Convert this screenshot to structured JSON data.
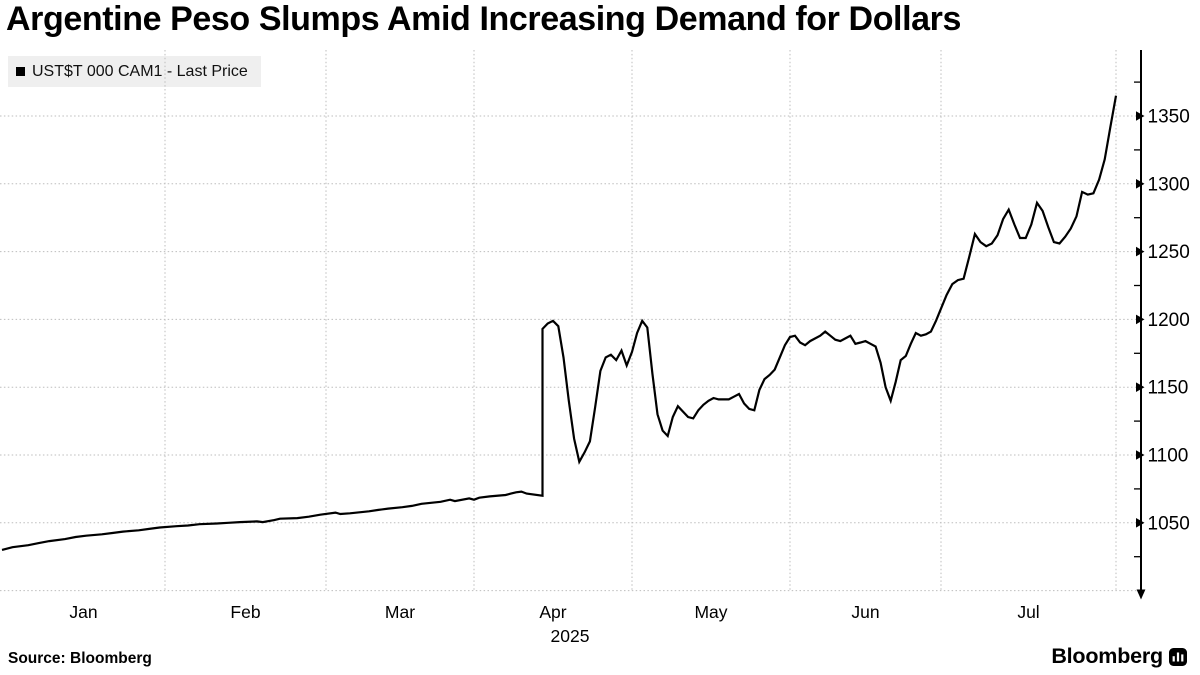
{
  "header": {
    "title": "Argentine Peso Slumps Amid Increasing Demand for Dollars"
  },
  "legend": {
    "swatch_icon": "black-square-icon",
    "swatch_color": "#000000",
    "label": "UST$T 000 CAM1 - Last Price",
    "background": "#efefef"
  },
  "footer": {
    "source": "Source: Bloomberg",
    "logo_text": "Bloomberg",
    "logo_icon": "bar-chart-icon"
  },
  "chart_data": {
    "type": "line",
    "title": "Argentine Peso Slumps Amid Increasing Demand for Dollars",
    "series_name": "UST$T 000 CAM1 - Last Price",
    "line_color": "#000000",
    "grid": "dotted",
    "grid_color": "#bdbdbd",
    "legend_position": "top-left",
    "y_axis": {
      "side": "right",
      "ylim": [
        1000,
        1400
      ],
      "ticks": [
        1050,
        1100,
        1150,
        1200,
        1250,
        1300,
        1350
      ],
      "minor_ticks": [
        1025,
        1075,
        1125,
        1175,
        1225,
        1275,
        1325,
        1375
      ],
      "gridlines": [
        1000,
        1050,
        1100,
        1150,
        1200,
        1250,
        1300,
        1350
      ]
    },
    "x_axis": {
      "range": [
        "2025-01-01",
        "2025-08-01"
      ],
      "months": [
        "Jan",
        "Feb",
        "Mar",
        "Apr",
        "May",
        "Jun",
        "Jul"
      ],
      "year_label": "2025"
    },
    "x_anchors": [
      [
        "2025-01-01",
        2
      ],
      [
        "2025-02-01",
        165
      ],
      [
        "2025-03-01",
        326
      ],
      [
        "2025-04-01",
        474
      ],
      [
        "2025-05-01",
        632
      ],
      [
        "2025-06-01",
        790
      ],
      [
        "2025-07-01",
        941
      ],
      [
        "2025-08-01",
        1116
      ]
    ],
    "points": [
      [
        "2025-01-01",
        1030
      ],
      [
        "2025-01-03",
        1032
      ],
      [
        "2025-01-06",
        1033.5
      ],
      [
        "2025-01-08",
        1035
      ],
      [
        "2025-01-10",
        1036.5
      ],
      [
        "2025-01-13",
        1038
      ],
      [
        "2025-01-15",
        1039.5
      ],
      [
        "2025-01-17",
        1040.5
      ],
      [
        "2025-01-20",
        1041.5
      ],
      [
        "2025-01-22",
        1042.5
      ],
      [
        "2025-01-24",
        1043.5
      ],
      [
        "2025-01-27",
        1044.5
      ],
      [
        "2025-01-29",
        1045.5
      ],
      [
        "2025-01-31",
        1046.5
      ],
      [
        "2025-02-03",
        1047.5
      ],
      [
        "2025-02-05",
        1048
      ],
      [
        "2025-02-07",
        1049
      ],
      [
        "2025-02-10",
        1049.5
      ],
      [
        "2025-02-12",
        1050
      ],
      [
        "2025-02-14",
        1050.5
      ],
      [
        "2025-02-17",
        1051
      ],
      [
        "2025-02-18",
        1050.5
      ],
      [
        "2025-02-20",
        1052
      ],
      [
        "2025-02-21",
        1053
      ],
      [
        "2025-02-24",
        1053.5
      ],
      [
        "2025-02-26",
        1054.5
      ],
      [
        "2025-02-28",
        1056
      ],
      [
        "2025-03-03",
        1057.5
      ],
      [
        "2025-03-04",
        1056.5
      ],
      [
        "2025-03-06",
        1057
      ],
      [
        "2025-03-10",
        1058.5
      ],
      [
        "2025-03-12",
        1059.5
      ],
      [
        "2025-03-14",
        1060.5
      ],
      [
        "2025-03-17",
        1061.5
      ],
      [
        "2025-03-19",
        1062.5
      ],
      [
        "2025-03-21",
        1064
      ],
      [
        "2025-03-25",
        1065.5
      ],
      [
        "2025-03-27",
        1067
      ],
      [
        "2025-03-28",
        1066
      ],
      [
        "2025-03-31",
        1068
      ],
      [
        "2025-04-01",
        1067
      ],
      [
        "2025-04-02",
        1068.5
      ],
      [
        "2025-04-04",
        1069.5
      ],
      [
        "2025-04-07",
        1070.5
      ],
      [
        "2025-04-08",
        1071.5
      ],
      [
        "2025-04-09",
        1072.5
      ],
      [
        "2025-04-10",
        1073
      ],
      [
        "2025-04-11",
        1071.5
      ],
      [
        "2025-04-14",
        1070
      ],
      [
        "2025-04-14",
        1193
      ],
      [
        "2025-04-15",
        1197
      ],
      [
        "2025-04-16",
        1199
      ],
      [
        "2025-04-17",
        1195
      ],
      [
        "2025-04-18",
        1172
      ],
      [
        "2025-04-19",
        1140
      ],
      [
        "2025-04-20",
        1112
      ],
      [
        "2025-04-21",
        1095
      ],
      [
        "2025-04-22",
        1102
      ],
      [
        "2025-04-23",
        1110
      ],
      [
        "2025-04-24",
        1135
      ],
      [
        "2025-04-25",
        1162
      ],
      [
        "2025-04-26",
        1172
      ],
      [
        "2025-04-27",
        1174
      ],
      [
        "2025-04-28",
        1170
      ],
      [
        "2025-04-29",
        1177
      ],
      [
        "2025-04-30",
        1166
      ],
      [
        "2025-05-01",
        1176
      ],
      [
        "2025-05-02",
        1190
      ],
      [
        "2025-05-03",
        1199
      ],
      [
        "2025-05-04",
        1194
      ],
      [
        "2025-05-05",
        1160
      ],
      [
        "2025-05-06",
        1130
      ],
      [
        "2025-05-07",
        1118
      ],
      [
        "2025-05-08",
        1114
      ],
      [
        "2025-05-09",
        1128
      ],
      [
        "2025-05-10",
        1136
      ],
      [
        "2025-05-11",
        1132
      ],
      [
        "2025-05-12",
        1128
      ],
      [
        "2025-05-13",
        1127
      ],
      [
        "2025-05-14",
        1133
      ],
      [
        "2025-05-15",
        1137
      ],
      [
        "2025-05-16",
        1140
      ],
      [
        "2025-05-17",
        1142
      ],
      [
        "2025-05-18",
        1141
      ],
      [
        "2025-05-20",
        1141
      ],
      [
        "2025-05-21",
        1143
      ],
      [
        "2025-05-22",
        1145
      ],
      [
        "2025-05-23",
        1138
      ],
      [
        "2025-05-24",
        1134
      ],
      [
        "2025-05-25",
        1133
      ],
      [
        "2025-05-26",
        1148
      ],
      [
        "2025-05-27",
        1156
      ],
      [
        "2025-05-28",
        1159
      ],
      [
        "2025-05-29",
        1163
      ],
      [
        "2025-05-30",
        1172
      ],
      [
        "2025-05-31",
        1181
      ],
      [
        "2025-06-01",
        1187
      ],
      [
        "2025-06-02",
        1188
      ],
      [
        "2025-06-03",
        1183
      ],
      [
        "2025-06-04",
        1181
      ],
      [
        "2025-06-05",
        1184
      ],
      [
        "2025-06-06",
        1186
      ],
      [
        "2025-06-07",
        1188
      ],
      [
        "2025-06-08",
        1191
      ],
      [
        "2025-06-09",
        1188
      ],
      [
        "2025-06-10",
        1185
      ],
      [
        "2025-06-11",
        1184
      ],
      [
        "2025-06-12",
        1186
      ],
      [
        "2025-06-13",
        1188
      ],
      [
        "2025-06-14",
        1182
      ],
      [
        "2025-06-15",
        1183
      ],
      [
        "2025-06-16",
        1184
      ],
      [
        "2025-06-17",
        1182
      ],
      [
        "2025-06-18",
        1180
      ],
      [
        "2025-06-19",
        1168
      ],
      [
        "2025-06-20",
        1150
      ],
      [
        "2025-06-21",
        1140
      ],
      [
        "2025-06-22",
        1154
      ],
      [
        "2025-06-23",
        1170
      ],
      [
        "2025-06-24",
        1173
      ],
      [
        "2025-06-25",
        1182
      ],
      [
        "2025-06-26",
        1190
      ],
      [
        "2025-06-27",
        1188
      ],
      [
        "2025-06-28",
        1189
      ],
      [
        "2025-06-29",
        1191
      ],
      [
        "2025-06-30",
        1199
      ],
      [
        "2025-07-01",
        1208
      ],
      [
        "2025-07-02",
        1218
      ],
      [
        "2025-07-03",
        1226
      ],
      [
        "2025-07-04",
        1229
      ],
      [
        "2025-07-05",
        1230
      ],
      [
        "2025-07-06",
        1246
      ],
      [
        "2025-07-07",
        1263
      ],
      [
        "2025-07-08",
        1257
      ],
      [
        "2025-07-09",
        1254
      ],
      [
        "2025-07-10",
        1256
      ],
      [
        "2025-07-11",
        1262
      ],
      [
        "2025-07-12",
        1274
      ],
      [
        "2025-07-13",
        1281
      ],
      [
        "2025-07-14",
        1270
      ],
      [
        "2025-07-15",
        1260
      ],
      [
        "2025-07-16",
        1260
      ],
      [
        "2025-07-17",
        1270
      ],
      [
        "2025-07-18",
        1286
      ],
      [
        "2025-07-19",
        1280
      ],
      [
        "2025-07-20",
        1268
      ],
      [
        "2025-07-21",
        1257
      ],
      [
        "2025-07-22",
        1256
      ],
      [
        "2025-07-23",
        1261
      ],
      [
        "2025-07-24",
        1267
      ],
      [
        "2025-07-25",
        1276
      ],
      [
        "2025-07-26",
        1294
      ],
      [
        "2025-07-27",
        1292
      ],
      [
        "2025-07-28",
        1293
      ],
      [
        "2025-07-29",
        1303
      ],
      [
        "2025-07-30",
        1318
      ],
      [
        "2025-07-31",
        1342
      ],
      [
        "2025-08-01",
        1365
      ]
    ]
  }
}
